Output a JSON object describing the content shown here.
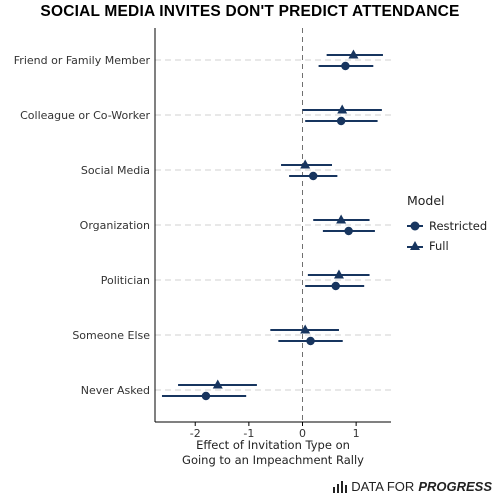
{
  "chart_data": {
    "type": "scatter",
    "title": "SOCIAL MEDIA INVITES DON'T PREDICT ATTENDANCE",
    "xlabel_line1": "Effect of Invitation Type on",
    "xlabel_line2": "Going to an Impeachment Rally",
    "ylabel": "",
    "xlim": [
      -2.75,
      1.65
    ],
    "x_ticks": [
      -2,
      -1,
      0,
      1
    ],
    "x_tick_labels": [
      "-2",
      "-1",
      "0",
      "1"
    ],
    "categories": [
      "Friend or Family Member",
      "Colleague or Co-Worker",
      "Social Media",
      "Organization",
      "Politician",
      "Someone Else",
      "Never Asked"
    ],
    "legend_title": "Model",
    "legend_position": "right",
    "reference_line": 0,
    "grid": "horizontal-dashed",
    "series": [
      {
        "name": "Restricted",
        "marker": "circle",
        "estimates": [
          0.8,
          0.72,
          0.2,
          0.86,
          0.62,
          0.15,
          -1.8
        ],
        "ci_low": [
          0.3,
          0.05,
          -0.25,
          0.38,
          0.05,
          -0.45,
          -2.62
        ],
        "ci_high": [
          1.32,
          1.4,
          0.65,
          1.35,
          1.15,
          0.75,
          -1.05
        ]
      },
      {
        "name": "Full",
        "marker": "triangle",
        "estimates": [
          0.95,
          0.74,
          0.05,
          0.72,
          0.68,
          0.05,
          -1.58
        ],
        "ci_low": [
          0.45,
          0.0,
          -0.4,
          0.2,
          0.1,
          -0.6,
          -2.32
        ],
        "ci_high": [
          1.5,
          1.48,
          0.55,
          1.25,
          1.25,
          0.68,
          -0.85
        ]
      }
    ]
  },
  "colors": {
    "marker": "#17355f",
    "grid": "#d0d0d0",
    "zero_line": "#707070",
    "axis": "#000000"
  },
  "branding": {
    "prefix": "DATA FOR",
    "bold": "PROGRESS"
  }
}
